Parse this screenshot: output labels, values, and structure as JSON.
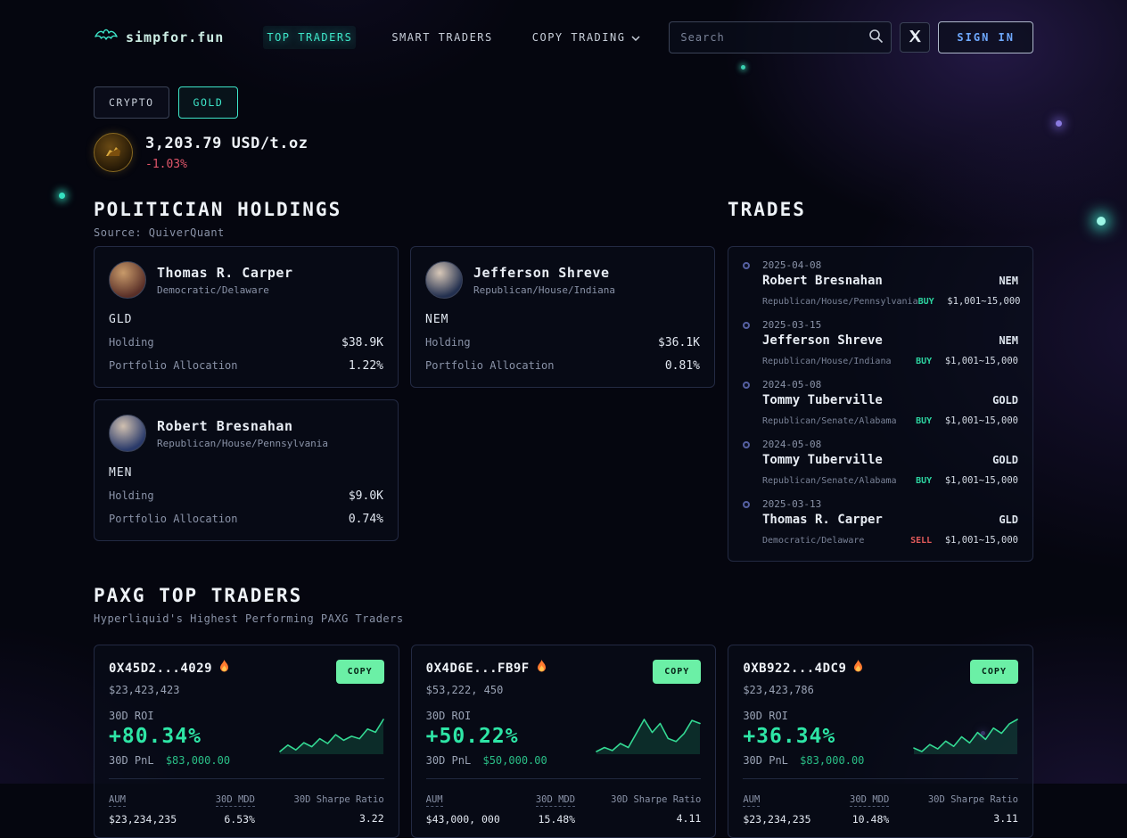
{
  "colors": {
    "accent_teal": "#3ee6c9",
    "negative_red": "#e0566a",
    "positive_green": "#2ee6a6",
    "copy_button_green": "#6bf0a6",
    "sell_red": "#e15a5a"
  },
  "header": {
    "brand": "simpfor.fun",
    "nav": [
      {
        "label": "TOP TRADERS"
      },
      {
        "label": "SMART TRADERS"
      },
      {
        "label": "COPY TRADING"
      }
    ],
    "search_placeholder": "Search",
    "sign_in_label": "SIGN IN"
  },
  "filters": [
    {
      "label": "CRYPTO"
    },
    {
      "label": "GOLD"
    }
  ],
  "price": {
    "value": "3,203.79 USD/t.oz",
    "change": "-1.03%"
  },
  "holdings": {
    "title": "POLITICIAN HOLDINGS",
    "source": "Source: QuiverQuant",
    "labels": {
      "holding": "Holding",
      "allocation": "Portfolio Allocation"
    },
    "cards": [
      {
        "name": "Thomas R. Carper",
        "party": "Democratic/Delaware",
        "ticker": "GLD",
        "holding": "$38.9K",
        "allocation": "1.22%",
        "avatar_colors": [
          "#c89a6a",
          "#5a3028"
        ]
      },
      {
        "name": "Jefferson Shreve",
        "party": "Republican/House/Indiana",
        "ticker": "NEM",
        "holding": "$36.1K",
        "allocation": "0.81%",
        "avatar_colors": [
          "#d8c8b8",
          "#23304f"
        ]
      },
      {
        "name": "Robert Bresnahan",
        "party": "Republican/House/Pennsylvania",
        "ticker": "MEN",
        "holding": "$9.0K",
        "allocation": "0.74%",
        "avatar_colors": [
          "#d0c0b0",
          "#2a3a6a"
        ]
      }
    ]
  },
  "trades": {
    "title": "TRADES",
    "items": [
      {
        "date": "2025-04-08",
        "name": "Robert Bresnahan",
        "party": "Republican/House/Pennsylvania",
        "ticker": "NEM",
        "action": "BUY",
        "amount": "$1,001~15,000"
      },
      {
        "date": "2025-03-15",
        "name": "Jefferson Shreve",
        "party": "Republican/House/Indiana",
        "ticker": "NEM",
        "action": "BUY",
        "amount": "$1,001~15,000"
      },
      {
        "date": "2024-05-08",
        "name": "Tommy Tuberville",
        "party": "Republican/Senate/Alabama",
        "ticker": "GOLD",
        "action": "BUY",
        "amount": "$1,001~15,000"
      },
      {
        "date": "2024-05-08",
        "name": "Tommy Tuberville",
        "party": "Republican/Senate/Alabama",
        "ticker": "GOLD",
        "action": "BUY",
        "amount": "$1,001~15,000"
      },
      {
        "date": "2025-03-13",
        "name": "Thomas R. Carper",
        "party": "Democratic/Delaware",
        "ticker": "GLD",
        "action": "SELL",
        "amount": "$1,001~15,000"
      }
    ]
  },
  "traders": {
    "title": "PAXG TOP TRADERS",
    "subtitle": "Hyperliquid's Highest Performing PAXG Traders",
    "copy_label": "COPY",
    "labels": {
      "roi": "30D ROI",
      "pnl": "30D PnL",
      "aum": "AUM",
      "mdd": "30D MDD",
      "sharpe": "30D Sharpe Ratio"
    },
    "cards": [
      {
        "address": "0X45D2...4029",
        "balance": "$23,423,423",
        "roi": "+80.34%",
        "pnl": "$83,000.00",
        "aum": "$23,234,235",
        "mdd": "6.53%",
        "sharpe": "3.22",
        "spark": [
          20,
          28,
          22,
          31,
          26,
          36,
          30,
          41,
          34,
          39,
          36,
          48,
          44,
          60
        ]
      },
      {
        "address": "0X4D6E...FB9F",
        "balance": "$53,222, 450",
        "roi": "+50.22%",
        "pnl": "$50,000.00",
        "aum": "$43,000, 000",
        "mdd": "15.48%",
        "sharpe": "4.11",
        "spark": [
          12,
          16,
          13,
          20,
          16,
          30,
          44,
          31,
          40,
          25,
          22,
          30,
          43,
          40
        ]
      },
      {
        "address": "0XB922...4DC9",
        "balance": "$23,423,786",
        "roi": "+36.34%",
        "pnl": "$83,000.00",
        "aum": "$23,234,235",
        "mdd": "10.48%",
        "sharpe": "3.11",
        "spark": [
          16,
          12,
          20,
          15,
          24,
          18,
          29,
          22,
          34,
          26,
          39,
          33,
          44,
          49
        ]
      }
    ]
  }
}
